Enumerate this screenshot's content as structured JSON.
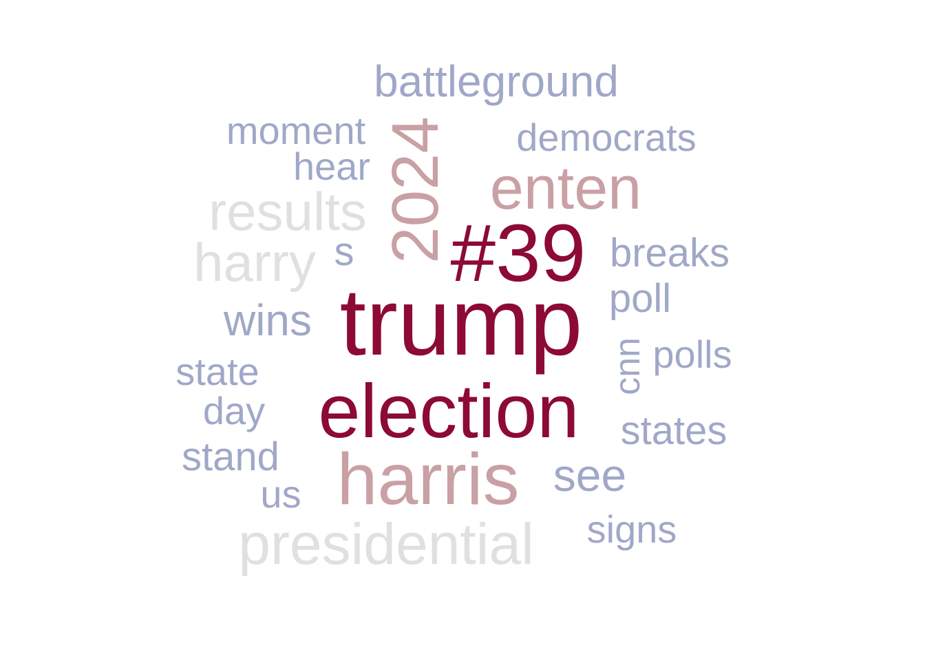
{
  "palette": {
    "dark_red": "#8c0a33",
    "pink": "#c9a0a4",
    "light_gray": "#e0e0e0",
    "blue_gray": "#a0a8c8"
  },
  "words": [
    {
      "text": "trump",
      "color": "dark_red"
    },
    {
      "text": "election",
      "color": "dark_red"
    },
    {
      "text": "#39",
      "color": "dark_red"
    },
    {
      "text": "harris",
      "color": "pink"
    },
    {
      "text": "enten",
      "color": "pink"
    },
    {
      "text": "2024",
      "color": "pink"
    },
    {
      "text": "presidential",
      "color": "light_gray"
    },
    {
      "text": "results",
      "color": "light_gray"
    },
    {
      "text": "harry",
      "color": "light_gray"
    },
    {
      "text": "battleground",
      "color": "blue_gray"
    },
    {
      "text": "moment",
      "color": "blue_gray"
    },
    {
      "text": "democrats",
      "color": "blue_gray"
    },
    {
      "text": "hear",
      "color": "blue_gray"
    },
    {
      "text": "s",
      "color": "blue_gray"
    },
    {
      "text": "breaks",
      "color": "blue_gray"
    },
    {
      "text": "poll",
      "color": "blue_gray"
    },
    {
      "text": "wins",
      "color": "blue_gray"
    },
    {
      "text": "polls",
      "color": "blue_gray"
    },
    {
      "text": "cnn",
      "color": "blue_gray"
    },
    {
      "text": "state",
      "color": "blue_gray"
    },
    {
      "text": "day",
      "color": "blue_gray"
    },
    {
      "text": "states",
      "color": "blue_gray"
    },
    {
      "text": "stand",
      "color": "blue_gray"
    },
    {
      "text": "see",
      "color": "blue_gray"
    },
    {
      "text": "us",
      "color": "blue_gray"
    },
    {
      "text": "signs",
      "color": "blue_gray"
    }
  ]
}
